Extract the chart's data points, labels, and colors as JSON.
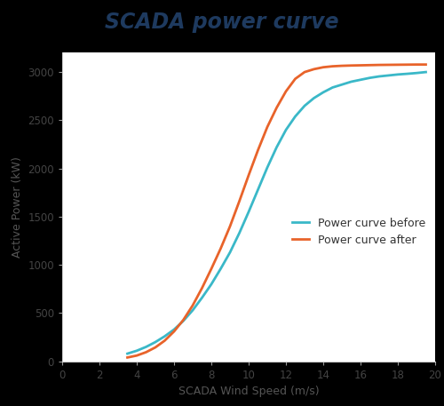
{
  "title": "SCADA power curve",
  "title_color": "#1e3a5f",
  "xlabel": "SCADA Wind Speed (m/s)",
  "ylabel": "Active Power (kW)",
  "xlim": [
    0,
    20
  ],
  "ylim": [
    0,
    3200
  ],
  "xticks": [
    0,
    2,
    4,
    6,
    8,
    10,
    12,
    14,
    16,
    18,
    20
  ],
  "yticks": [
    0,
    500,
    1000,
    1500,
    2000,
    2500,
    3000
  ],
  "background_color": "#ffffff",
  "title_bg_color": "#000000",
  "color_before": "#3ab8c8",
  "color_after": "#e8632a",
  "legend_labels": [
    "Power curve before",
    "Power curve after"
  ],
  "wind_speed": [
    3.5,
    4.0,
    4.5,
    5.0,
    5.5,
    6.0,
    6.5,
    7.0,
    7.5,
    8.0,
    8.5,
    9.0,
    9.5,
    10.0,
    10.5,
    11.0,
    11.5,
    12.0,
    12.5,
    13.0,
    13.5,
    14.0,
    14.5,
    15.0,
    15.5,
    16.0,
    16.5,
    17.0,
    17.5,
    18.0,
    18.5,
    19.0,
    19.5
  ],
  "power_before": [
    80,
    110,
    150,
    200,
    260,
    330,
    420,
    530,
    660,
    800,
    960,
    1130,
    1330,
    1550,
    1780,
    2010,
    2220,
    2400,
    2540,
    2650,
    2730,
    2790,
    2840,
    2870,
    2900,
    2920,
    2940,
    2955,
    2965,
    2975,
    2982,
    2990,
    3000
  ],
  "power_after": [
    40,
    60,
    95,
    145,
    215,
    310,
    430,
    580,
    760,
    960,
    1170,
    1400,
    1660,
    1930,
    2190,
    2430,
    2630,
    2800,
    2930,
    3000,
    3030,
    3050,
    3060,
    3065,
    3068,
    3070,
    3072,
    3074,
    3075,
    3076,
    3077,
    3078,
    3078
  ]
}
